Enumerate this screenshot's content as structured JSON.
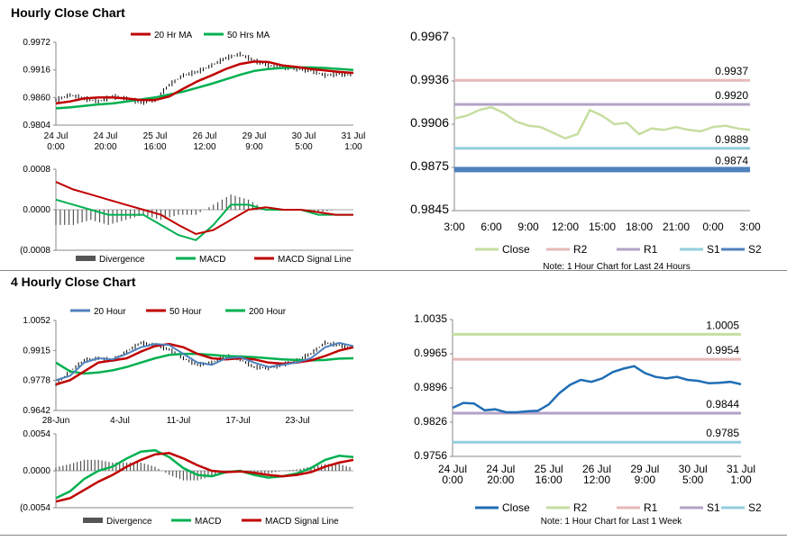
{
  "sections": [
    {
      "title": "Hourly Close Chart"
    },
    {
      "title": "4 Hourly Close Chart"
    }
  ],
  "chart_data": [
    {
      "id": "hourly-price",
      "type": "line",
      "yticks": [
        "0.9972",
        "0.9916",
        "0.9860",
        "0.9804"
      ],
      "ylim": [
        0.9804,
        0.9972
      ],
      "xticks": [
        [
          "24 Jul",
          "0:00"
        ],
        [
          "24 Jul",
          "20:00"
        ],
        [
          "25 Jul",
          "16:00"
        ],
        [
          "26 Jul",
          "12:00"
        ],
        [
          "29 Jul",
          "9:00"
        ],
        [
          "30 Jul",
          "5:00"
        ],
        [
          "31 Jul",
          "1:00"
        ]
      ],
      "legend": [
        "20 Hr MA",
        "50 Hrs MA"
      ],
      "colors": {
        "ma20": "#c00000",
        "ma50": "#00b050",
        "price": "#000000"
      },
      "series": [
        {
          "name": "20 Hr MA",
          "values": [
            0.9848,
            0.9852,
            0.9858,
            0.986,
            0.986,
            0.9858,
            0.9855,
            0.9855,
            0.9862,
            0.9878,
            0.9893,
            0.9905,
            0.9918,
            0.9928,
            0.9933,
            0.9932,
            0.9925,
            0.9922,
            0.9918,
            0.9915,
            0.9912,
            0.991
          ]
        },
        {
          "name": "50 Hrs MA",
          "values": [
            0.9838,
            0.984,
            0.9843,
            0.9846,
            0.9848,
            0.9852,
            0.9856,
            0.986,
            0.9866,
            0.9872,
            0.988,
            0.9888,
            0.9897,
            0.9906,
            0.9914,
            0.9918,
            0.992,
            0.9921,
            0.9921,
            0.992,
            0.9918,
            0.9916
          ]
        },
        {
          "name": "Close",
          "values": [
            0.9855,
            0.9865,
            0.9858,
            0.9852,
            0.9862,
            0.9858,
            0.985,
            0.9855,
            0.9885,
            0.9905,
            0.9912,
            0.9925,
            0.994,
            0.9948,
            0.9935,
            0.9925,
            0.9922,
            0.9918,
            0.9915,
            0.9905,
            0.9908,
            0.9905
          ]
        }
      ]
    },
    {
      "id": "hourly-macd",
      "type": "line",
      "yticks": [
        "0.0008",
        "0.0000",
        "(0.0008"
      ],
      "ylim": [
        -0.0008,
        0.0008
      ],
      "legend": [
        "Divergence",
        "MACD",
        "MACD Signal Line"
      ],
      "colors": {
        "divergence": "#555555",
        "macd": "#00b050",
        "signal": "#c00000"
      },
      "series": [
        {
          "name": "MACD",
          "values": [
            0.0002,
            0.0001,
            0.0,
            -0.0001,
            -0.0001,
            -0.0001,
            -0.0003,
            -0.0005,
            -0.0006,
            -0.0003,
            0.0001,
            0.0001,
            0.0,
            0.0,
            0.0,
            -0.0001,
            -0.0001,
            -0.0001
          ]
        },
        {
          "name": "MACD Signal Line",
          "values": [
            0.00055,
            0.0004,
            0.0003,
            0.0002,
            0.0001,
            0.0,
            -0.0001,
            -0.0003,
            -0.00048,
            -0.0004,
            -0.0002,
            0.0,
            5e-05,
            0.0,
            0.0,
            -5e-05,
            -0.0001,
            -0.0001
          ]
        },
        {
          "name": "Divergence",
          "values": [
            -0.0003,
            -0.0003,
            -0.0002,
            -0.0003,
            -0.0002,
            -0.0001,
            -0.0002,
            -0.0001,
            -0.0001,
            0.0001,
            0.0003,
            0.0002,
            0.0,
            0.0,
            0.0,
            -5e-05,
            0.0,
            0.0
          ]
        }
      ]
    },
    {
      "id": "hourly-sr",
      "type": "line",
      "yticks": [
        "0.9967",
        "0.9936",
        "0.9906",
        "0.9875",
        "0.9845"
      ],
      "ylim": [
        0.9845,
        0.9967
      ],
      "xticks": [
        "3:00",
        "6:00",
        "9:00",
        "12:00",
        "15:00",
        "18:00",
        "21:00",
        "0:00",
        "3:00"
      ],
      "levels": [
        {
          "name": "R2",
          "value": 0.9937,
          "label": "0.9937"
        },
        {
          "name": "R1",
          "value": 0.992,
          "label": "0.9920"
        },
        {
          "name": "S1",
          "value": 0.9889,
          "label": "0.9889"
        },
        {
          "name": "S2",
          "value": 0.9874,
          "label": "0.9874"
        }
      ],
      "close": [
        0.991,
        0.9912,
        0.9916,
        0.9918,
        0.9914,
        0.9908,
        0.9905,
        0.9904,
        0.99,
        0.9896,
        0.9899,
        0.9916,
        0.9912,
        0.9906,
        0.9907,
        0.9899,
        0.9903,
        0.9902,
        0.9904,
        0.9902,
        0.9901,
        0.9904,
        0.9905,
        0.9903,
        0.9902
      ],
      "legend": [
        "Close",
        "R2",
        "R1",
        "S1",
        "S2"
      ],
      "colors": {
        "close": "#c6dea0",
        "R2": "#e6b9b8",
        "R1": "#b3a2c7",
        "S1": "#93cddd",
        "S2": "#4f81bd"
      },
      "note": "Note: 1 Hour Chart for Last 24 Hours"
    },
    {
      "id": "four-hourly-price",
      "type": "line",
      "yticks": [
        "1.0052",
        "0.9915",
        "0.9778",
        "0.9642"
      ],
      "ylim": [
        0.9642,
        1.0052
      ],
      "xticks": [
        "28-Jun",
        "4-Jul",
        "11-Jul",
        "17-Jul",
        "23-Jul"
      ],
      "legend": [
        "20 Hour",
        "50 Hour",
        "200 Hour"
      ],
      "colors": {
        "h20": "#4f81bd",
        "h50": "#c00000",
        "h200": "#00b050",
        "price": "#000000"
      },
      "series": [
        {
          "name": "20 Hour",
          "values": [
            0.978,
            0.98,
            0.986,
            0.988,
            0.9875,
            0.99,
            0.993,
            0.9945,
            0.994,
            0.99,
            0.986,
            0.985,
            0.988,
            0.9885,
            0.986,
            0.984,
            0.985,
            0.986,
            0.988,
            0.993,
            0.995,
            0.9935
          ]
        },
        {
          "name": "50 Hour",
          "values": [
            0.976,
            0.978,
            0.982,
            0.986,
            0.987,
            0.988,
            0.991,
            0.9935,
            0.9945,
            0.993,
            0.99,
            0.988,
            0.9875,
            0.988,
            0.9875,
            0.986,
            0.9855,
            0.986,
            0.987,
            0.989,
            0.9915,
            0.993
          ]
        },
        {
          "name": "200 Hour",
          "values": [
            0.986,
            0.982,
            0.981,
            0.9815,
            0.9825,
            0.984,
            0.986,
            0.988,
            0.9895,
            0.99,
            0.99,
            0.9895,
            0.989,
            0.9888,
            0.9885,
            0.988,
            0.9875,
            0.9872,
            0.987,
            0.9872,
            0.9878,
            0.988
          ]
        },
        {
          "name": "Close",
          "values": [
            0.976,
            0.982,
            0.987,
            0.988,
            0.987,
            0.991,
            0.995,
            0.994,
            0.992,
            0.988,
            0.985,
            0.986,
            0.989,
            0.9875,
            0.984,
            0.9835,
            0.985,
            0.987,
            0.99,
            0.995,
            0.994,
            0.9925
          ]
        }
      ]
    },
    {
      "id": "four-hourly-macd",
      "type": "line",
      "yticks": [
        "0.0054",
        "0.0000",
        "(0.0054"
      ],
      "ylim": [
        -0.0054,
        0.0054
      ],
      "legend": [
        "Divergence",
        "MACD",
        "MACD Signal Line"
      ],
      "colors": {
        "divergence": "#555555",
        "macd": "#00b050",
        "signal": "#c00000"
      },
      "series": [
        {
          "name": "MACD",
          "values": [
            -0.004,
            -0.003,
            -0.0012,
            0.0,
            0.0006,
            0.0018,
            0.0028,
            0.003,
            0.002,
            0.0004,
            -0.0006,
            -0.0008,
            -0.0002,
            0.0,
            -0.0006,
            -0.001,
            -0.0008,
            -0.0004,
            0.0004,
            0.0016,
            0.0022,
            0.002
          ]
        },
        {
          "name": "MACD Signal Line",
          "values": [
            -0.0045,
            -0.004,
            -0.0028,
            -0.0016,
            -0.0006,
            0.0006,
            0.0016,
            0.0024,
            0.0026,
            0.0018,
            0.0008,
            0.0,
            -0.0002,
            -0.0001,
            -0.0003,
            -0.0006,
            -0.0008,
            -0.0006,
            -0.0002,
            0.0006,
            0.0012,
            0.0016
          ]
        },
        {
          "name": "Divergence",
          "values": [
            0.0005,
            0.001,
            0.0016,
            0.0016,
            0.0012,
            0.0012,
            0.0012,
            0.0006,
            -0.0006,
            -0.0014,
            -0.0014,
            -0.0008,
            0.0,
            0.0001,
            -0.0003,
            -0.0004,
            0.0,
            0.0002,
            0.0006,
            0.001,
            0.001,
            0.0004
          ]
        }
      ]
    },
    {
      "id": "four-hourly-sr",
      "type": "line",
      "yticks": [
        "1.0035",
        "0.9965",
        "0.9896",
        "0.9826",
        "0.9756"
      ],
      "ylim": [
        0.9756,
        1.0035
      ],
      "xticks": [
        [
          "24 Jul",
          "0:00"
        ],
        [
          "24 Jul",
          "20:00"
        ],
        [
          "25 Jul",
          "16:00"
        ],
        [
          "26 Jul",
          "12:00"
        ],
        [
          "29 Jul",
          "9:00"
        ],
        [
          "30 Jul",
          "5:00"
        ],
        [
          "31 Jul",
          "1:00"
        ]
      ],
      "levels": [
        {
          "name": "R2",
          "value": 1.0005,
          "label": "1.0005"
        },
        {
          "name": "R1",
          "value": 0.9954,
          "label": "0.9954"
        },
        {
          "name": "S1",
          "value": 0.9844,
          "label": "0.9844"
        },
        {
          "name": "S2",
          "value": 0.9785,
          "label": "0.9785"
        }
      ],
      "close": [
        0.9855,
        0.9865,
        0.9864,
        0.985,
        0.9852,
        0.9846,
        0.9846,
        0.9848,
        0.9849,
        0.9862,
        0.9885,
        0.9902,
        0.9912,
        0.9908,
        0.9915,
        0.9928,
        0.9935,
        0.994,
        0.9926,
        0.9918,
        0.9915,
        0.9918,
        0.9912,
        0.991,
        0.9905,
        0.9906,
        0.9908,
        0.9903
      ],
      "legend": [
        "Close",
        "R2",
        "R1",
        "S1",
        "S2"
      ],
      "colors": {
        "close": "#1f6db5",
        "R2": "#c6dea0",
        "R1": "#e6b9b8",
        "S1": "#b3a2c7",
        "S2": "#93cddd"
      },
      "note": "Note: 1 Hour Chart for Last 1 Week"
    }
  ]
}
